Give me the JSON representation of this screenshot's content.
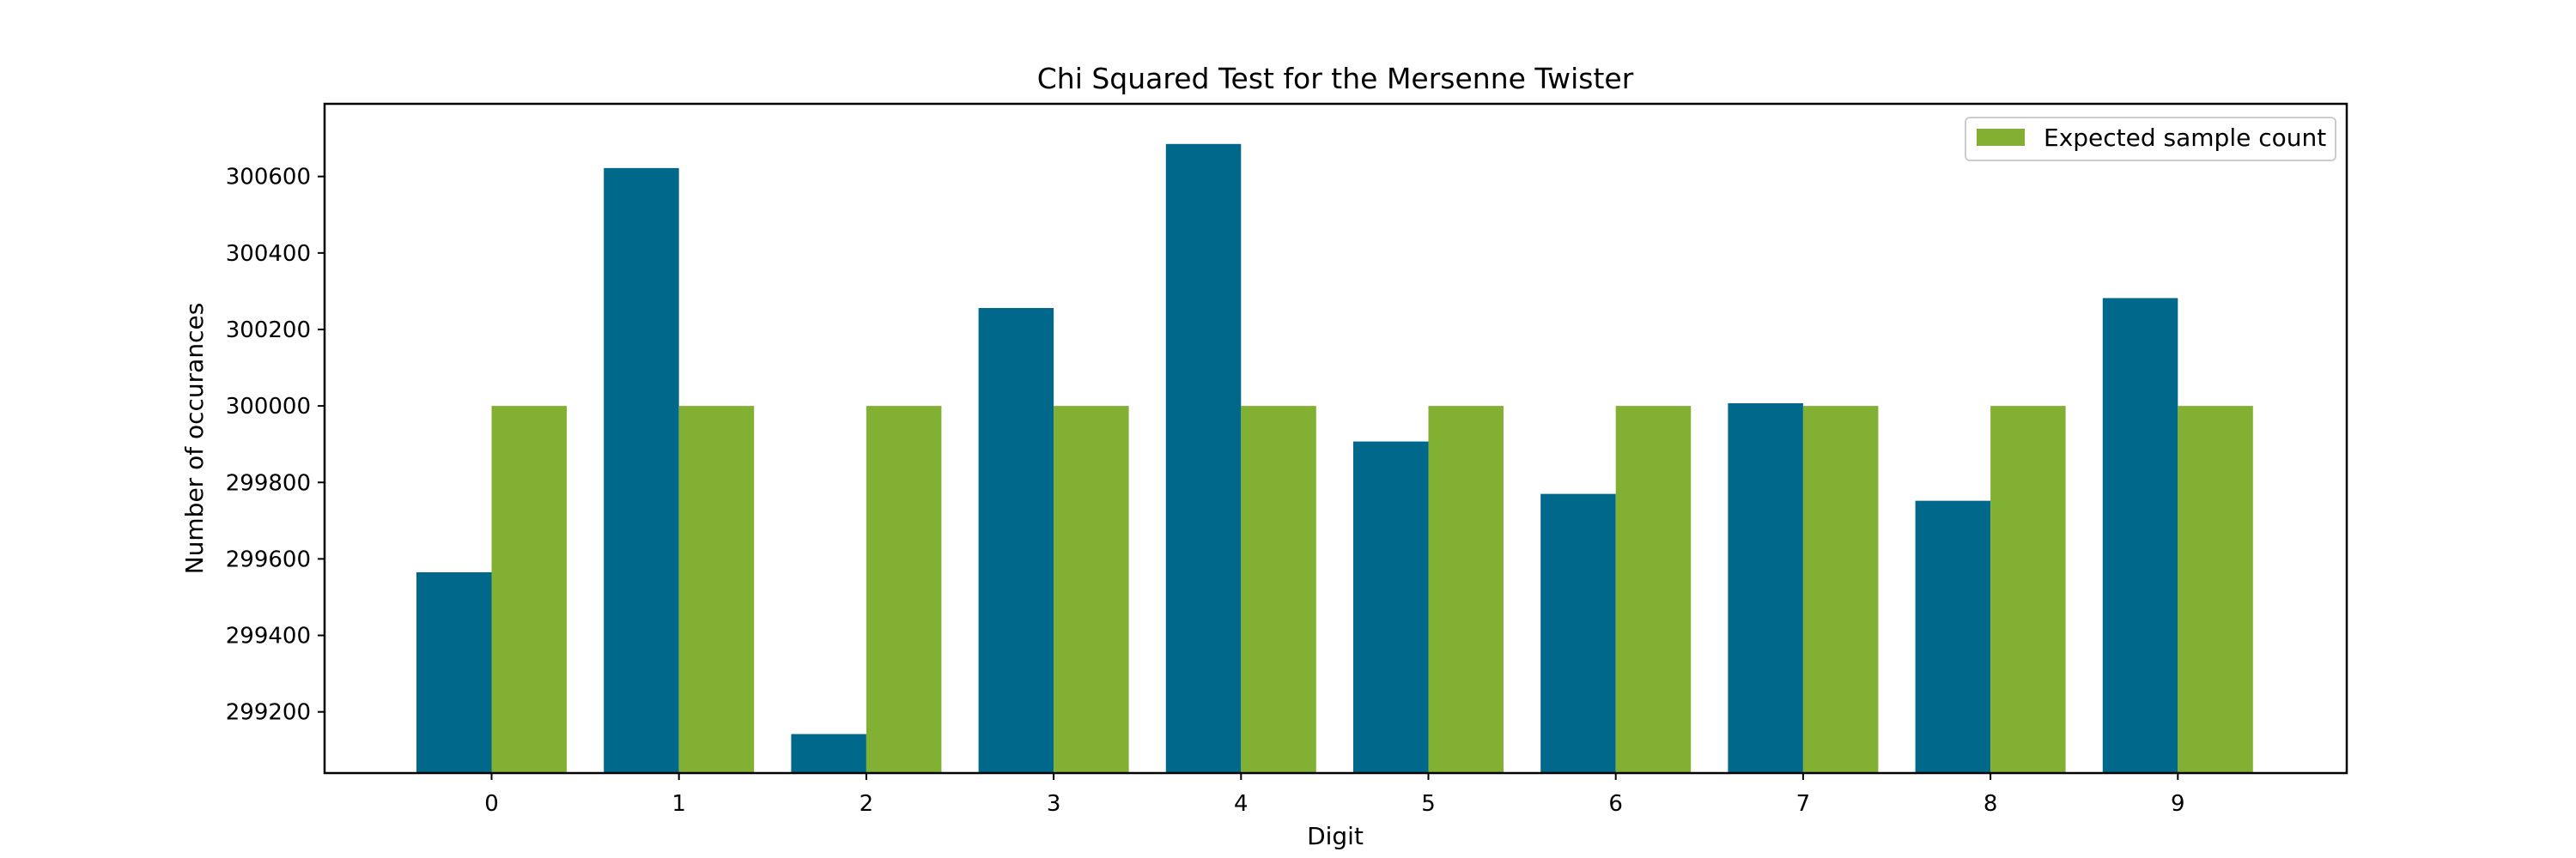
{
  "chart_data": {
    "type": "bar",
    "title": "Chi Squared Test for the Mersenne Twister",
    "xlabel": "Digit",
    "ylabel": "Number of occurances",
    "categories": [
      "0",
      "1",
      "2",
      "3",
      "4",
      "5",
      "6",
      "7",
      "8",
      "9"
    ],
    "series": [
      {
        "values": [
          299565,
          300622,
          299142,
          300256,
          300685,
          299907,
          299770,
          300007,
          299752,
          300282
        ],
        "color": "#00688b"
      },
      {
        "name": "Expected sample count",
        "values": [
          300000,
          300000,
          300000,
          300000,
          300000,
          300000,
          300000,
          300000,
          300000,
          300000
        ],
        "color": "#82b033"
      }
    ],
    "ylim": [
      299040,
      300790
    ],
    "yticks": [
      299200,
      299400,
      299600,
      299800,
      300000,
      300200,
      300400,
      300600
    ],
    "grid": false,
    "legend_position": "top-right"
  }
}
